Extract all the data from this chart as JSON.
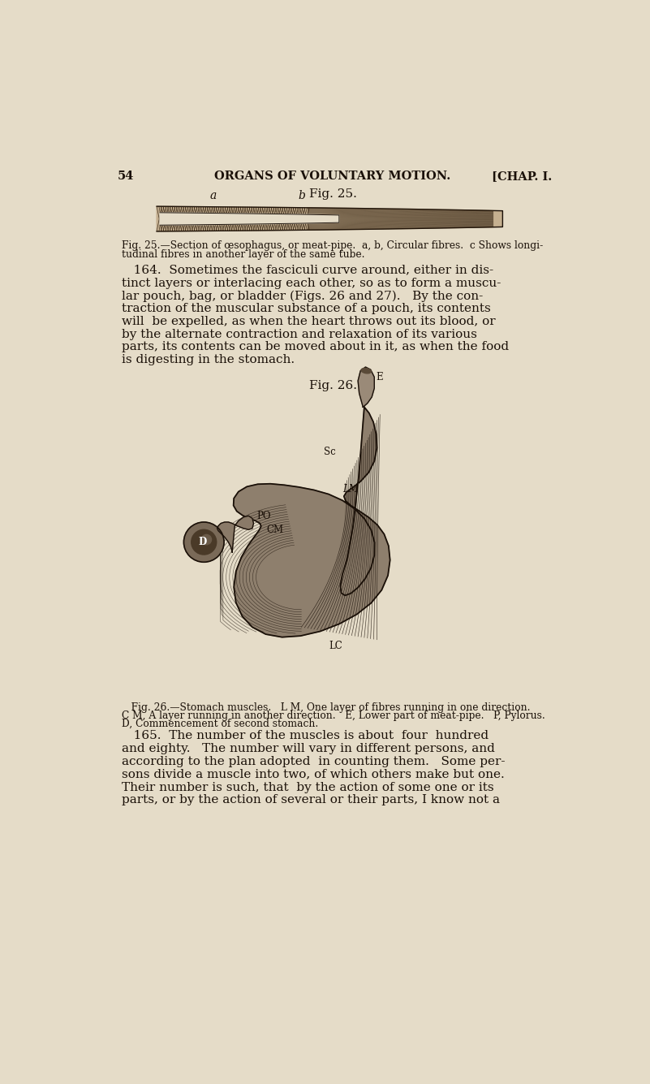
{
  "bg_color": "#e5dcc8",
  "page_num": "54",
  "header_center": "ORGANS OF VOLUNTARY MOTION.",
  "header_right": "[CHAP. I.",
  "fig25_title": "Fig. 25.",
  "fig25_caption_line1": "Fig. 25.—Section of œsophagus, or meat-pipe.  a, b, Circular fibres.  c Shows longi-",
  "fig25_caption_line2": "tudinal fibres in another layer of the same tube.",
  "para164_lines": [
    "   164.  Sometimes the fasciculi curve around, either in dis-",
    "tinct layers or interlacing each other, so as to form a muscu-",
    "lar pouch, bag, or bladder (Figs. 26 and 27).   By the con-",
    "traction of the muscular substance of a pouch, its contents",
    "will  be expelled, as when the heart throws out its blood, or",
    "by the alternate contraction and relaxation of its various",
    "parts, its contents can be moved about in it, as when the food",
    "is digesting in the stomach."
  ],
  "fig26_title": "Fig. 26.",
  "fig26_caption_lines": [
    "   Fig. 26.—Stomach muscles.   L M, One layer of fibres running in one direction.",
    "C M, A layer running in another direction.   E, Lower part of meat-pipe.   P, Pylorus.",
    "D, Commencement of second stomach."
  ],
  "para165_lines": [
    "   165.  The number of the muscles is about  four  hundred",
    "and eighty.   The number will vary in different persons, and",
    "according to the plan adopted  in counting them.   Some per-",
    "sons divide a muscle into two, of which others make but one.",
    "Their number is such, that  by the action of some one or its",
    "parts, or by the action of several or their parts, I know not a"
  ],
  "text_color": "#1a1008",
  "dark_color": "#2a1f10",
  "fig_title_size": 11,
  "body_text_size": 11,
  "caption_text_size": 8.8,
  "header_text_size": 10.5
}
